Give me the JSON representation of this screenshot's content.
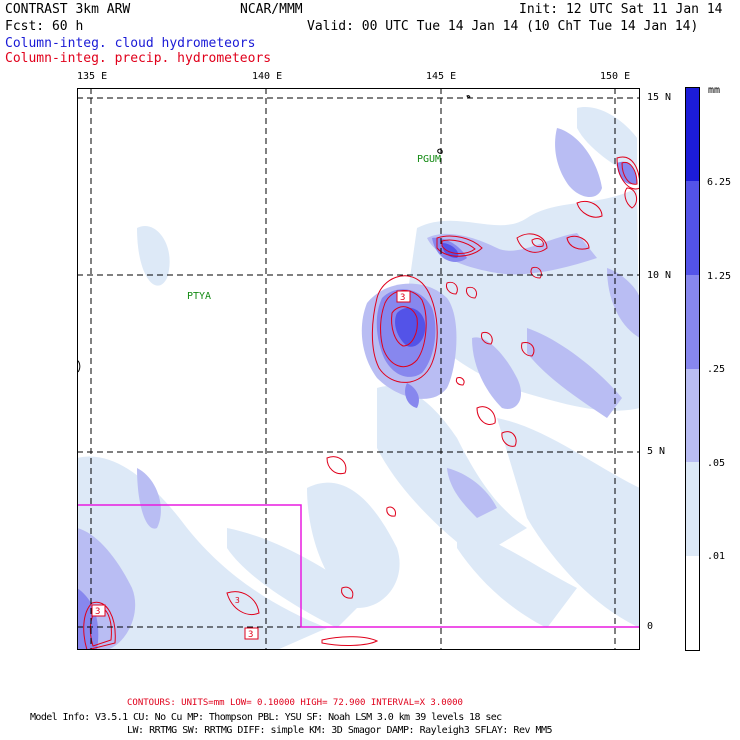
{
  "header": {
    "line1_left": "CONTRAST  3km ARW",
    "line1_mid": "NCAR/MMM",
    "line1_right": "Init: 12 UTC Sat 11 Jan 14",
    "line2_left": "Fcst:   60 h",
    "line2_right": "Valid: 00 UTC Tue 14 Jan 14 (10 ChT Tue 14 Jan 14)",
    "field_cloud": "Column-integ. cloud hydrometeors",
    "field_precip": "Column-integ. precip. hydrometeors"
  },
  "map": {
    "lon_labels": [
      "135 E",
      "140 E",
      "145 E",
      "150 E"
    ],
    "lat_labels": [
      "15 N",
      "10 N",
      "5 N",
      "0"
    ],
    "stations": [
      "PGUM",
      "PTYA"
    ],
    "contour_labels": [
      "3",
      "3",
      "3",
      "3"
    ]
  },
  "colorbar": {
    "unit": "mm",
    "levels": [
      "6.25",
      "1.25",
      ".25",
      ".05",
      ".01"
    ],
    "colors": [
      "#1c1cd8",
      "#5353e8",
      "#8787ee",
      "#b9bdf3",
      "#dde9f7",
      "#ffffff"
    ]
  },
  "footer": {
    "contours": "CONTOURS:  UNITS=mm  LOW= 0.10000     HIGH=  72.900     INTERVAL=X  3.0000",
    "model_line1": "Model Info: V3.5.1     CU: No Cu     MP: Thompson     PBL: YSU       SF: Noah LSM     3.0 km   39 levels    18 sec",
    "model_line2": "LW: RRTMG    SW: RRTMG   DIFF: simple KM: 3D Smagor DAMP: Rayleigh3  SFLAY: Rev MM5"
  }
}
